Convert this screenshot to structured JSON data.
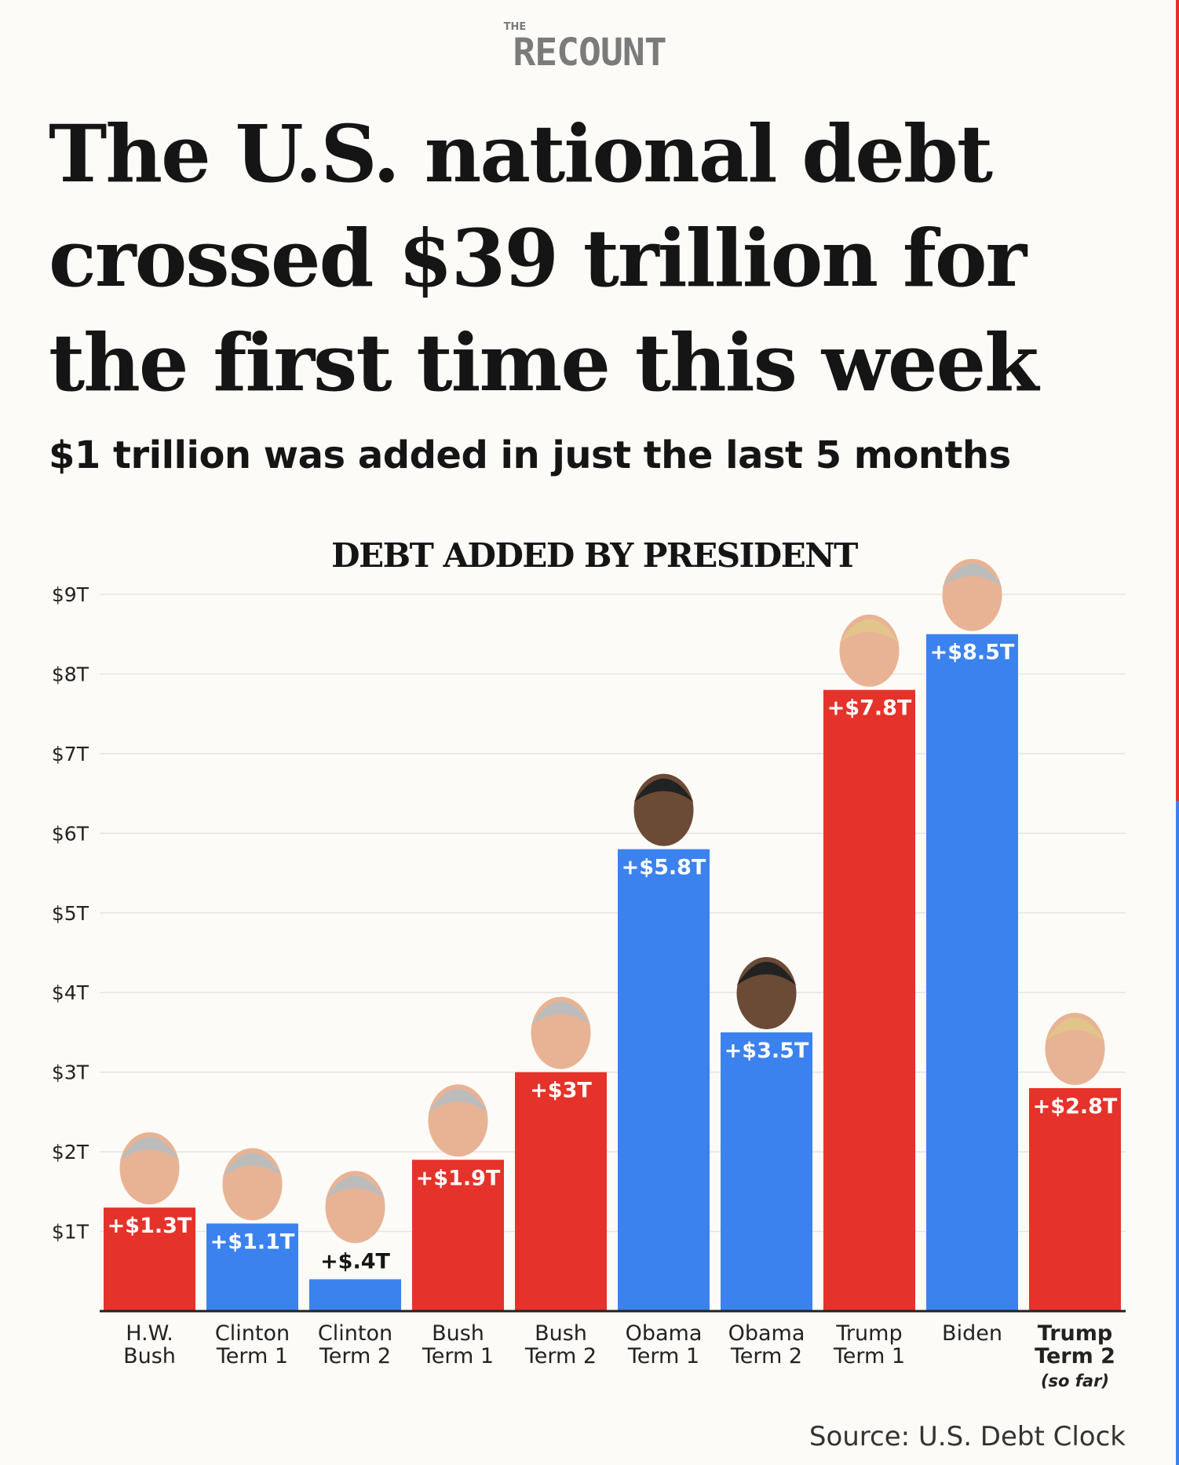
{
  "brand": {
    "the": "THE",
    "name": "RECOUNT"
  },
  "title": "The U.S. national debt crossed $39 trillion for the first time this week",
  "subtitle": "$1 trillion was added in just the last 5 months",
  "source": "Source: U.S. Debt Clock",
  "colors": {
    "republican": "#e5322a",
    "democrat": "#3b82ee",
    "background": "#fcfbf7"
  },
  "chart_data": {
    "type": "bar",
    "title": "DEBT ADDED BY PRESIDENT",
    "ylim": [
      0,
      9
    ],
    "yticks": [
      {
        "v": 1,
        "label": "$1T"
      },
      {
        "v": 2,
        "label": "$2T"
      },
      {
        "v": 3,
        "label": "$3T"
      },
      {
        "v": 4,
        "label": "$4T"
      },
      {
        "v": 5,
        "label": "$5T"
      },
      {
        "v": 6,
        "label": "$6T"
      },
      {
        "v": 7,
        "label": "$7T"
      },
      {
        "v": 8,
        "label": "$8T"
      },
      {
        "v": 9,
        "label": "$9T"
      }
    ],
    "grid": true,
    "categories": [
      {
        "lines": [
          "H.W.",
          "Bush"
        ],
        "value": 1.3,
        "label": "+$1.3T",
        "party": "republican",
        "face": "hw-bush-photo"
      },
      {
        "lines": [
          "Clinton",
          "Term 1"
        ],
        "value": 1.1,
        "label": "+$1.1T",
        "party": "democrat",
        "face": "clinton-photo"
      },
      {
        "lines": [
          "Clinton",
          "Term 2"
        ],
        "value": 0.4,
        "label": "+$.4T",
        "party": "democrat",
        "face": "clinton-photo"
      },
      {
        "lines": [
          "Bush",
          "Term 1"
        ],
        "value": 1.9,
        "label": "+$1.9T",
        "party": "republican",
        "face": "bush-photo"
      },
      {
        "lines": [
          "Bush",
          "Term 2"
        ],
        "value": 3.0,
        "label": "+$3T",
        "party": "republican",
        "face": "bush-photo"
      },
      {
        "lines": [
          "Obama",
          "Term 1"
        ],
        "value": 5.8,
        "label": "+$5.8T",
        "party": "democrat",
        "face": "obama-photo"
      },
      {
        "lines": [
          "Obama",
          "Term 2"
        ],
        "value": 3.5,
        "label": "+$3.5T",
        "party": "democrat",
        "face": "obama-photo"
      },
      {
        "lines": [
          "Trump",
          "Term 1"
        ],
        "value": 7.8,
        "label": "+$7.8T",
        "party": "republican",
        "face": "trump-photo"
      },
      {
        "lines": [
          "Biden"
        ],
        "value": 8.5,
        "label": "+$8.5T",
        "party": "democrat",
        "face": "biden-photo"
      },
      {
        "lines": [
          "Trump",
          "Term 2"
        ],
        "note": "(so far)",
        "value": 2.8,
        "label": "+$2.8T",
        "party": "republican",
        "face": "trump-photo",
        "bold": true
      }
    ]
  }
}
